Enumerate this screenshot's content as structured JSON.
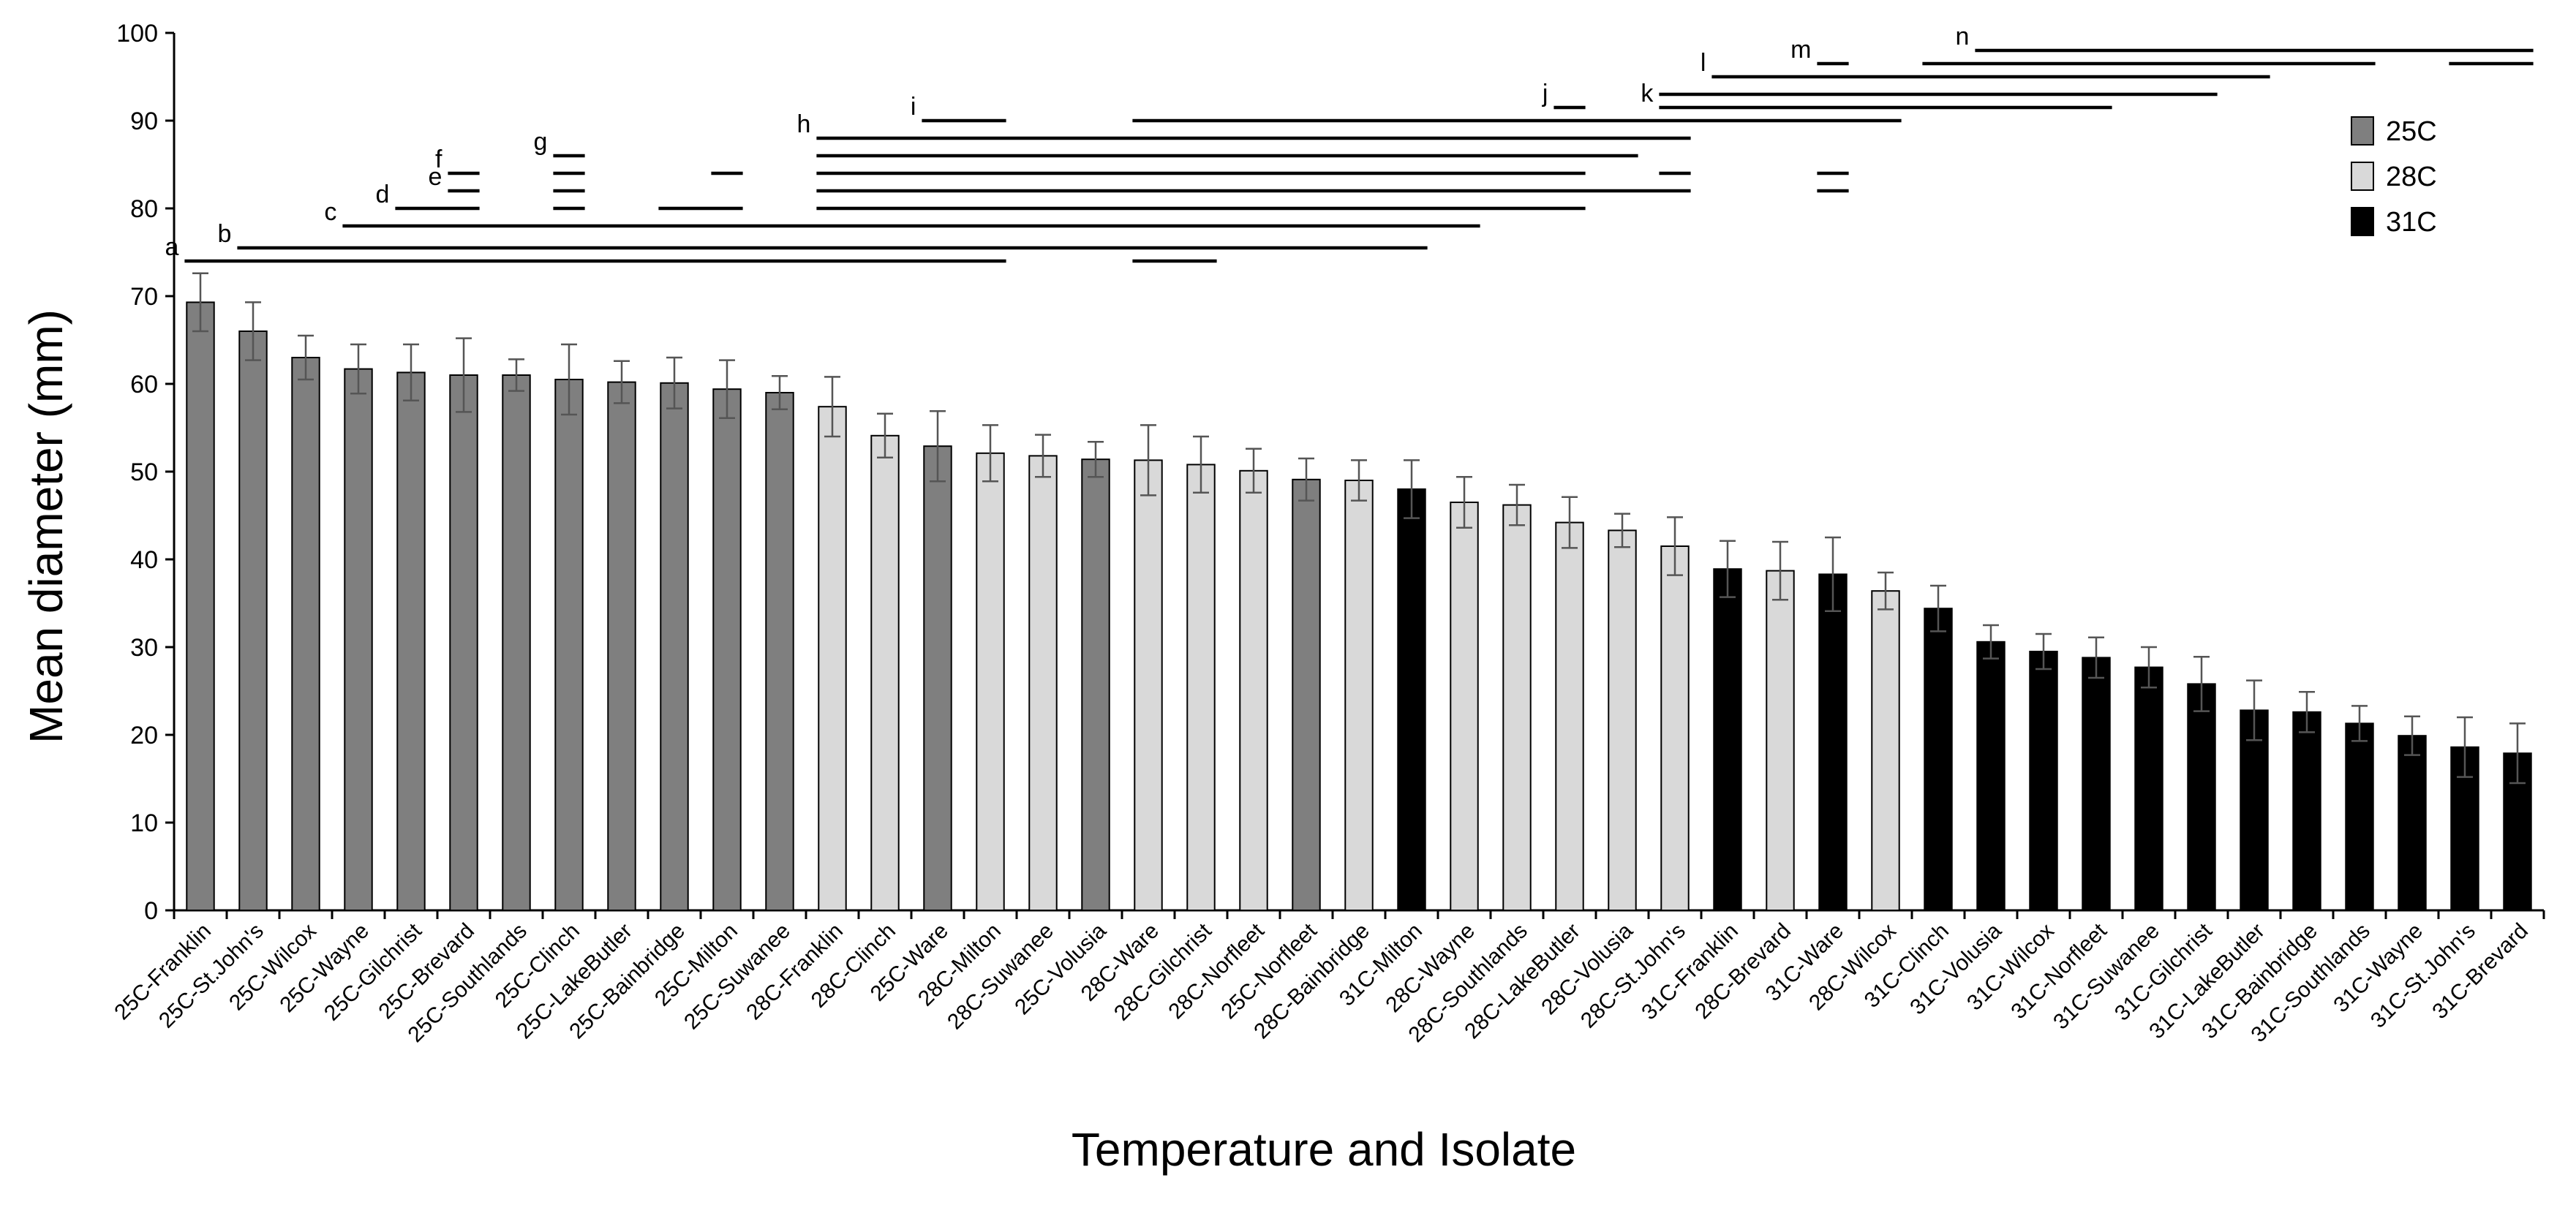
{
  "chart_data": {
    "type": "bar",
    "xlabel": "Temperature and Isolate",
    "ylabel": "Mean diameter (mm)",
    "ylim": [
      0,
      100
    ],
    "yticks": [
      0,
      10,
      20,
      30,
      40,
      50,
      60,
      70,
      80,
      90,
      100
    ],
    "legend": {
      "placement": "top-right",
      "entries": [
        {
          "label": "25C",
          "color": "#7f7f7f"
        },
        {
          "label": "28C",
          "color": "#d9d9d9"
        },
        {
          "label": "31C",
          "color": "#000000"
        }
      ]
    },
    "categories": [
      "25C-Franklin",
      "25C-St.John's",
      "25C-Wilcox",
      "25C-Wayne",
      "25C-Gilchrist",
      "25C-Brevard",
      "25C-Southlands",
      "25C-Clinch",
      "25C-LakeButler",
      "25C-Bainbridge",
      "25C-Milton",
      "25C-Suwanee",
      "28C-Franklin",
      "28C-Clinch",
      "25C-Ware",
      "28C-Milton",
      "28C-Suwanee",
      "25C-Volusia",
      "28C-Ware",
      "28C-Gilchrist",
      "28C-Norfleet",
      "25C-Norfleet",
      "28C-Bainbridge",
      "31C-Milton",
      "28C-Wayne",
      "28C-Southlands",
      "28C-LakeButler",
      "28C-Volusia",
      "28C-St.John's",
      "31C-Franklin",
      "28C-Brevard",
      "31C-Ware",
      "28C-Wilcox",
      "31C-Clinch",
      "31C-Volusia",
      "31C-Wilcox",
      "31C-Norfleet",
      "31C-Suwanee",
      "31C-Gilchrist",
      "31C-LakeButler",
      "31C-Bainbridge",
      "31C-Southlands",
      "31C-Wayne",
      "31C-St.John's",
      "31C-Brevard"
    ],
    "temperature_group": [
      "25C",
      "25C",
      "25C",
      "25C",
      "25C",
      "25C",
      "25C",
      "25C",
      "25C",
      "25C",
      "25C",
      "25C",
      "28C",
      "28C",
      "25C",
      "28C",
      "28C",
      "25C",
      "28C",
      "28C",
      "28C",
      "25C",
      "28C",
      "31C",
      "28C",
      "28C",
      "28C",
      "28C",
      "28C",
      "31C",
      "28C",
      "31C",
      "28C",
      "31C",
      "31C",
      "31C",
      "31C",
      "31C",
      "31C",
      "31C",
      "31C",
      "31C",
      "31C",
      "31C",
      "31C"
    ],
    "values": [
      69.3,
      66.0,
      63.0,
      61.7,
      61.3,
      61.0,
      61.0,
      60.5,
      60.2,
      60.1,
      59.4,
      59.0,
      57.4,
      54.1,
      52.9,
      52.1,
      51.8,
      51.4,
      51.3,
      50.8,
      50.1,
      49.1,
      49.0,
      48.0,
      46.5,
      46.2,
      44.2,
      43.3,
      41.5,
      38.9,
      38.7,
      38.3,
      36.4,
      34.4,
      30.6,
      29.5,
      28.8,
      27.7,
      25.8,
      22.8,
      22.6,
      21.3,
      19.9,
      18.6,
      17.9
    ],
    "errors": [
      3.3,
      3.3,
      2.5,
      2.8,
      3.2,
      4.2,
      1.8,
      4.0,
      2.4,
      2.9,
      3.3,
      1.9,
      3.4,
      2.5,
      4.0,
      3.2,
      2.4,
      2.0,
      4.0,
      3.2,
      2.5,
      2.4,
      2.3,
      3.3,
      2.9,
      2.3,
      2.9,
      1.9,
      3.3,
      3.2,
      3.3,
      4.2,
      2.1,
      2.6,
      1.9,
      2.0,
      2.3,
      2.3,
      3.1,
      3.4,
      2.3,
      2.0,
      2.2,
      3.4,
      3.4
    ],
    "significance_groups": [
      {
        "letter": "a",
        "segments": [
          {
            "from": 0,
            "to": 15,
            "y": 74
          },
          {
            "from": 18,
            "to": 19,
            "y": 74
          }
        ]
      },
      {
        "letter": "b",
        "segments": [
          {
            "from": 1,
            "to": 23,
            "y": 75.5
          }
        ]
      },
      {
        "letter": "c",
        "segments": [
          {
            "from": 3,
            "to": 24,
            "y": 78
          }
        ]
      },
      {
        "letter": "d",
        "segments": [
          {
            "from": 4,
            "to": 5,
            "y": 80
          },
          {
            "from": 7,
            "to": 7,
            "y": 80
          },
          {
            "from": 9,
            "to": 10,
            "y": 80
          },
          {
            "from": 12,
            "to": 26,
            "y": 80
          }
        ]
      },
      {
        "letter": "e",
        "segments": [
          {
            "from": 5,
            "to": 5,
            "y": 82
          },
          {
            "from": 7,
            "to": 7,
            "y": 82
          },
          {
            "from": 12,
            "to": 28,
            "y": 82
          },
          {
            "from": 31,
            "to": 31,
            "y": 82
          }
        ]
      },
      {
        "letter": "f",
        "segments": [
          {
            "from": 5,
            "to": 5,
            "y": 84
          },
          {
            "from": 7,
            "to": 7,
            "y": 84
          },
          {
            "from": 10,
            "to": 10,
            "y": 84
          },
          {
            "from": 12,
            "to": 26,
            "y": 84
          },
          {
            "from": 28,
            "to": 28,
            "y": 84
          },
          {
            "from": 31,
            "to": 31,
            "y": 84
          }
        ]
      },
      {
        "letter": "g",
        "segments": [
          {
            "from": 7,
            "to": 7,
            "y": 86
          },
          {
            "from": 12,
            "to": 27,
            "y": 86
          }
        ]
      },
      {
        "letter": "h",
        "segments": [
          {
            "from": 12,
            "to": 28,
            "y": 88
          }
        ]
      },
      {
        "letter": "i",
        "segments": [
          {
            "from": 14,
            "to": 15,
            "y": 90
          },
          {
            "from": 18,
            "to": 32,
            "y": 90
          }
        ]
      },
      {
        "letter": "j",
        "segments": [
          {
            "from": 26,
            "to": 26,
            "y": 91.5
          }
        ]
      },
      {
        "letter": "k",
        "segments": [
          {
            "from": 28,
            "to": 36,
            "y": 91.5
          },
          {
            "from": 28,
            "to": 38,
            "y": 93
          }
        ]
      },
      {
        "letter": "l",
        "segments": [
          {
            "from": 29,
            "to": 39,
            "y": 95
          }
        ]
      },
      {
        "letter": "m",
        "segments": [
          {
            "from": 31,
            "to": 31,
            "y": 96.5
          },
          {
            "from": 33,
            "to": 41,
            "y": 96.5
          },
          {
            "from": 43,
            "to": 44,
            "y": 96.5
          }
        ]
      },
      {
        "letter": "n",
        "segments": [
          {
            "from": 34,
            "to": 44,
            "y": 98
          }
        ]
      }
    ]
  }
}
